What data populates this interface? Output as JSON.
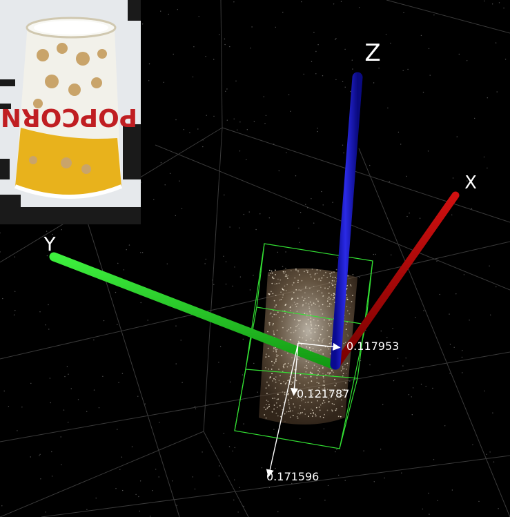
{
  "viewer": {
    "background": "#000000",
    "grid_color": "#3a3a3a"
  },
  "axes": {
    "x": {
      "label": "X",
      "color": "#b00000"
    },
    "y": {
      "label": "Y",
      "color": "#22c822"
    },
    "z": {
      "label": "Z",
      "color": "#1414c8"
    }
  },
  "bounding_box": {
    "color": "#33e033"
  },
  "dimensions": {
    "width": "0.117953",
    "depth": "0.121787",
    "height": "0.171596"
  },
  "reference_image": {
    "object": "popcorn-cup",
    "cup_text": "POPCORN",
    "cup_colors": {
      "body": "#f2f1ea",
      "band": "#e8b21c",
      "text": "#c01e22",
      "kernels": "#c9a46a"
    }
  }
}
